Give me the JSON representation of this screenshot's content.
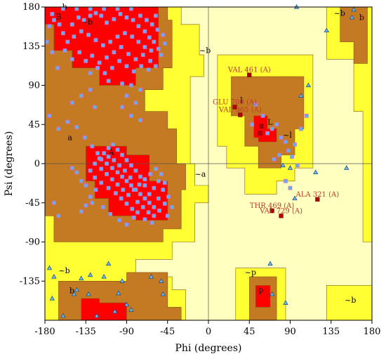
{
  "chart_data": {
    "type": "scatter",
    "xlabel": "Phi (degrees)",
    "ylabel": "Psi (degrees)",
    "xlim": [
      -180,
      180
    ],
    "ylim": [
      -180,
      180
    ],
    "xticks": [
      "-180",
      "-135",
      "-90",
      "-45",
      "0",
      "45",
      "90",
      "135",
      "180"
    ],
    "yticks": [
      "180",
      "135",
      "90",
      "45",
      "0",
      "-45",
      "-90",
      "-135"
    ],
    "colors": {
      "core": "#ff0000",
      "allowed": "#c47a22",
      "generous": "#ffff33",
      "outside": "#ffffc0",
      "general_point": "#5ab4f0",
      "glycine_point": "#6fc0e0",
      "outlier": "#b00000"
    },
    "region_labels": [
      {
        "text": "B",
        "phi": -168,
        "psi": 166
      },
      {
        "text": "b",
        "phi": -161,
        "psi": 177
      },
      {
        "text": "b",
        "phi": 166,
        "psi": 165
      },
      {
        "text": "~b",
        "phi": -140,
        "psi": 160
      },
      {
        "text": "~b",
        "phi": 138,
        "psi": 170
      },
      {
        "text": "~b",
        "phi": -10,
        "psi": 127
      },
      {
        "text": "~b",
        "phi": -165,
        "psi": -126
      },
      {
        "text": "b",
        "phi": -153,
        "psi": -149
      },
      {
        "text": "~b",
        "phi": 150,
        "psi": -160
      },
      {
        "text": "a",
        "phi": -155,
        "psi": 27
      },
      {
        "text": "A",
        "phi": -110,
        "psi": 10
      },
      {
        "text": "~a",
        "phi": -15,
        "psi": -15
      },
      {
        "text": "l",
        "phi": 35,
        "psi": 70
      },
      {
        "text": "L",
        "phi": 65,
        "psi": 45
      },
      {
        "text": "~l",
        "phi": 82,
        "psi": 30
      },
      {
        "text": "~p",
        "phi": 40,
        "psi": -128
      },
      {
        "text": "p",
        "phi": 55,
        "psi": -148
      }
    ],
    "annotations": [
      {
        "text": "VAL 461 (A)",
        "phi": 45,
        "psi": 102
      },
      {
        "text": "GLU 700 (A)",
        "phi": 29,
        "psi": 65
      },
      {
        "text": "VAL 365 (A)",
        "phi": 35,
        "psi": 56
      },
      {
        "text": "ALA 321 (A)",
        "phi": 120,
        "psi": -41
      },
      {
        "text": "THR 469 (A)",
        "phi": 70,
        "psi": -54
      },
      {
        "text": "VAL 729 (A)",
        "phi": 80,
        "psi": -60
      }
    ],
    "series": [
      {
        "kind": "outlier",
        "points": [
          [
            45,
            102
          ],
          [
            29,
            65
          ],
          [
            35,
            56
          ],
          [
            120,
            -41
          ],
          [
            70,
            -54
          ],
          [
            80,
            -60
          ],
          [
            58,
            43
          ],
          [
            57,
            35
          ]
        ]
      },
      {
        "kind": "glycine",
        "points": [
          [
            97,
            180
          ],
          [
            160,
            177
          ],
          [
            130,
            153
          ],
          [
            158,
            168
          ],
          [
            110,
            90
          ],
          [
            102,
            78
          ],
          [
            152,
            -5
          ],
          [
            118,
            -10
          ],
          [
            90,
            -5
          ],
          [
            82,
            -2
          ],
          [
            95,
            -40
          ],
          [
            68,
            -115
          ],
          [
            70,
            -150
          ],
          [
            85,
            -160
          ],
          [
            -170,
            -130
          ],
          [
            -172,
            -155
          ],
          [
            -145,
            -145
          ],
          [
            -123,
            -175
          ],
          [
            -103,
            -170
          ],
          [
            -85,
            -168
          ],
          [
            -50,
            -150
          ],
          [
            -52,
            -135
          ],
          [
            -63,
            -130
          ],
          [
            -95,
            -135
          ],
          [
            -110,
            -115
          ],
          [
            -115,
            -130
          ],
          [
            -130,
            -128
          ],
          [
            -140,
            -132
          ],
          [
            -148,
            -150
          ],
          [
            -160,
            -175
          ],
          [
            -175,
            -120
          ],
          [
            -132,
            -150
          ],
          [
            -99,
            -149
          ],
          [
            -90,
            -162
          ]
        ]
      },
      {
        "kind": "general",
        "points": [
          [
            -150,
            160
          ],
          [
            -143,
            168
          ],
          [
            -137,
            165
          ],
          [
            -130,
            170
          ],
          [
            -124,
            173
          ],
          [
            -118,
            170
          ],
          [
            -112,
            162
          ],
          [
            -104,
            166
          ],
          [
            -97,
            172
          ],
          [
            -90,
            168
          ],
          [
            -83,
            165
          ],
          [
            -77,
            158
          ],
          [
            -70,
            152
          ],
          [
            -65,
            145
          ],
          [
            -60,
            140
          ],
          [
            -55,
            132
          ],
          [
            -63,
            130
          ],
          [
            -70,
            134
          ],
          [
            -77,
            140
          ],
          [
            -84,
            146
          ],
          [
            -92,
            150
          ],
          [
            -100,
            146
          ],
          [
            -108,
            140
          ],
          [
            -116,
            136
          ],
          [
            -124,
            142
          ],
          [
            -132,
            148
          ],
          [
            -140,
            152
          ],
          [
            -148,
            146
          ],
          [
            -155,
            140
          ],
          [
            -160,
            150
          ],
          [
            -164,
            160
          ],
          [
            -170,
            165
          ],
          [
            -175,
            158
          ],
          [
            -158,
            130
          ],
          [
            -150,
            120
          ],
          [
            -142,
            128
          ],
          [
            -135,
            118
          ],
          [
            -128,
            124
          ],
          [
            -120,
            116
          ],
          [
            -112,
            122
          ],
          [
            -104,
            128
          ],
          [
            -96,
            134
          ],
          [
            -88,
            126
          ],
          [
            -80,
            120
          ],
          [
            -72,
            125
          ],
          [
            -64,
            118
          ],
          [
            -58,
            112
          ],
          [
            -66,
            108
          ],
          [
            -74,
            112
          ],
          [
            -82,
            106
          ],
          [
            -90,
            112
          ],
          [
            -98,
            118
          ],
          [
            -106,
            110
          ],
          [
            -114,
            104
          ],
          [
            -122,
            110
          ],
          [
            -130,
            104
          ],
          [
            -75,
            170
          ],
          [
            -68,
            165
          ],
          [
            -62,
            160
          ],
          [
            -56,
            154
          ],
          [
            -50,
            148
          ],
          [
            -48,
            138
          ],
          [
            -52,
            125
          ],
          [
            -58,
            170
          ],
          [
            -85,
            178
          ],
          [
            -100,
            178
          ],
          [
            -115,
            178
          ],
          [
            -130,
            178
          ],
          [
            -145,
            178
          ],
          [
            -160,
            178
          ],
          [
            -172,
            172
          ],
          [
            -166,
            110
          ],
          [
            -178,
            140
          ],
          [
            -172,
            128
          ],
          [
            -110,
            95
          ],
          [
            -95,
            92
          ],
          [
            -85,
            90
          ],
          [
            -75,
            85
          ],
          [
            -90,
            78
          ],
          [
            -80,
            70
          ],
          [
            -95,
            65
          ],
          [
            -85,
            55
          ],
          [
            -75,
            50
          ],
          [
            -130,
            85
          ],
          [
            -140,
            78
          ],
          [
            -150,
            70
          ],
          [
            -125,
            65
          ],
          [
            -165,
            40
          ],
          [
            -175,
            55
          ],
          [
            -128,
            20
          ],
          [
            -122,
            12
          ],
          [
            -118,
            5
          ],
          [
            -112,
            0
          ],
          [
            -106,
            -5
          ],
          [
            -100,
            -10
          ],
          [
            -95,
            -15
          ],
          [
            -90,
            -20
          ],
          [
            -85,
            -25
          ],
          [
            -80,
            -30
          ],
          [
            -75,
            -35
          ],
          [
            -70,
            -40
          ],
          [
            -65,
            -45
          ],
          [
            -60,
            -50
          ],
          [
            -55,
            -40
          ],
          [
            -50,
            -30
          ],
          [
            -55,
            -20
          ],
          [
            -60,
            -28
          ],
          [
            -65,
            -35
          ],
          [
            -70,
            -25
          ],
          [
            -75,
            -15
          ],
          [
            -80,
            -8
          ],
          [
            -85,
            -2
          ],
          [
            -90,
            4
          ],
          [
            -95,
            10
          ],
          [
            -100,
            16
          ],
          [
            -105,
            22
          ],
          [
            -110,
            18
          ],
          [
            -115,
            12
          ],
          [
            -120,
            6
          ],
          [
            -125,
            0
          ],
          [
            -130,
            -8
          ],
          [
            -125,
            -16
          ],
          [
            -118,
            -22
          ],
          [
            -110,
            -28
          ],
          [
            -102,
            -34
          ],
          [
            -96,
            -40
          ],
          [
            -90,
            -46
          ],
          [
            -84,
            -52
          ],
          [
            -78,
            -56
          ],
          [
            -72,
            -50
          ],
          [
            -66,
            -56
          ],
          [
            -60,
            -60
          ],
          [
            -54,
            -54
          ],
          [
            -48,
            -46
          ],
          [
            -44,
            -38
          ],
          [
            -48,
            -22
          ],
          [
            -52,
            -12
          ],
          [
            -58,
            -6
          ],
          [
            -64,
            -12
          ],
          [
            -70,
            -18
          ],
          [
            -76,
            -24
          ],
          [
            -82,
            -30
          ],
          [
            -88,
            -36
          ],
          [
            -94,
            -30
          ],
          [
            -100,
            -24
          ],
          [
            -106,
            -18
          ],
          [
            -112,
            -12
          ],
          [
            -118,
            -6
          ],
          [
            -124,
            -30
          ],
          [
            -130,
            -38
          ],
          [
            -135,
            -48
          ],
          [
            -140,
            -55
          ],
          [
            -128,
            -45
          ],
          [
            -116,
            -50
          ],
          [
            -108,
            -58
          ],
          [
            -98,
            -65
          ],
          [
            -90,
            -70
          ],
          [
            -82,
            -62
          ],
          [
            -140,
            -20
          ],
          [
            -145,
            -10
          ],
          [
            -135,
            -25
          ],
          [
            -150,
            -5
          ],
          [
            -45,
            -60
          ],
          [
            -40,
            -50
          ],
          [
            -62,
            -68
          ],
          [
            -70,
            -64
          ],
          [
            -78,
            -44
          ],
          [
            -86,
            -16
          ],
          [
            -92,
            -8
          ],
          [
            -98,
            -2
          ],
          [
            -104,
            4
          ],
          [
            -110,
            8
          ],
          [
            -136,
            30
          ],
          [
            -145,
            42
          ],
          [
            -155,
            48
          ],
          [
            -170,
            -45
          ],
          [
            -165,
            -60
          ],
          [
            75,
            45
          ],
          [
            70,
            40
          ],
          [
            65,
            35
          ],
          [
            80,
            30
          ],
          [
            85,
            25
          ],
          [
            78,
            10
          ],
          [
            72,
            5
          ],
          [
            88,
            15
          ],
          [
            92,
            8
          ],
          [
            98,
            -2
          ],
          [
            60,
            55
          ],
          [
            52,
            68
          ],
          [
            48,
            45
          ],
          [
            95,
            22
          ],
          [
            102,
            40
          ],
          [
            108,
            55
          ],
          [
            85,
            -20
          ],
          [
            90,
            -28
          ]
        ]
      }
    ]
  }
}
